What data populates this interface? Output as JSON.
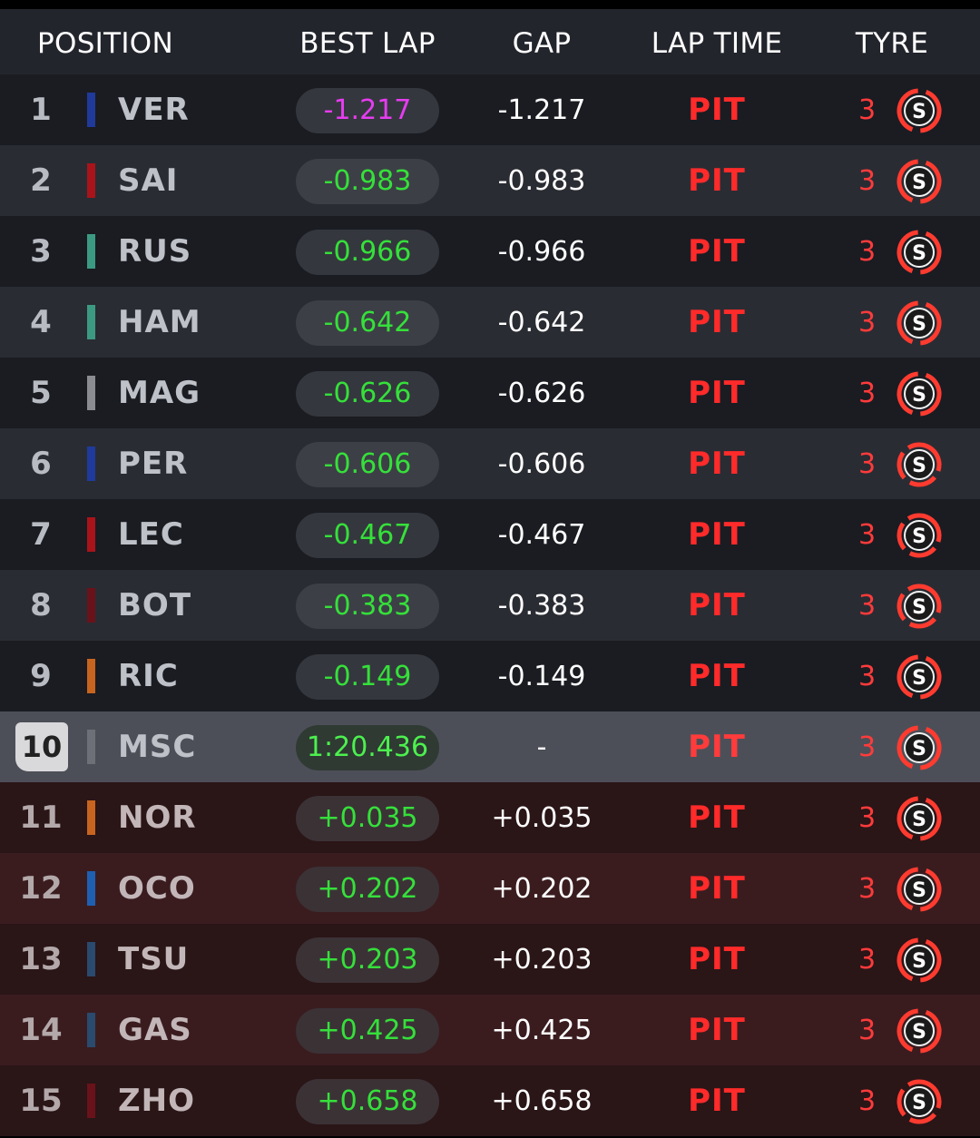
{
  "header": {
    "position": "POSITION",
    "best_lap": "BEST LAP",
    "gap": "GAP",
    "lap_time": "LAP TIME",
    "tyre": "TYRE"
  },
  "colors": {
    "red_bull": "#1f3a9a",
    "ferrari": "#a8141a",
    "mercedes": "#3c9a83",
    "haas": "#8a8c92",
    "mclaren": "#c7641f",
    "alpine": "#1f5fb0",
    "alphatauri": "#2a4a6e",
    "alfa_romeo": "#6a121a",
    "aston": "#555760",
    "soft_tyre": "#ff3b30",
    "fast_green": "#35e03a",
    "purple": "#e63cf0"
  },
  "rows": [
    {
      "pos": "1",
      "driver": "VER",
      "team_color": "#1f3a9a",
      "best_lap": "-1.217",
      "best_lap_purple": true,
      "gap": "-1.217",
      "lap_time": "PIT",
      "stops": "3",
      "tyre_label": "S",
      "tyre_icon": "soft-tyre-icon",
      "status": "ahead"
    },
    {
      "pos": "2",
      "driver": "SAI",
      "team_color": "#a8141a",
      "best_lap": "-0.983",
      "gap": "-0.983",
      "lap_time": "PIT",
      "stops": "3",
      "tyre_label": "S",
      "tyre_icon": "soft-tyre-icon",
      "status": "ahead"
    },
    {
      "pos": "3",
      "driver": "RUS",
      "team_color": "#3c9a83",
      "best_lap": "-0.966",
      "gap": "-0.966",
      "lap_time": "PIT",
      "stops": "3",
      "tyre_label": "S",
      "tyre_icon": "soft-tyre-icon",
      "status": "ahead"
    },
    {
      "pos": "4",
      "driver": "HAM",
      "team_color": "#3c9a83",
      "best_lap": "-0.642",
      "gap": "-0.642",
      "lap_time": "PIT",
      "stops": "3",
      "tyre_label": "S",
      "tyre_icon": "soft-tyre-icon",
      "status": "ahead"
    },
    {
      "pos": "5",
      "driver": "MAG",
      "team_color": "#8a8c92",
      "best_lap": "-0.626",
      "gap": "-0.626",
      "lap_time": "PIT",
      "stops": "3",
      "tyre_label": "S",
      "tyre_icon": "soft-tyre-icon",
      "status": "ahead"
    },
    {
      "pos": "6",
      "driver": "PER",
      "team_color": "#1f3a9a",
      "best_lap": "-0.606",
      "gap": "-0.606",
      "lap_time": "PIT",
      "stops": "3",
      "tyre_label": "S",
      "tyre_icon": "worn-soft-tyre-icon",
      "status": "ahead"
    },
    {
      "pos": "7",
      "driver": "LEC",
      "team_color": "#a8141a",
      "best_lap": "-0.467",
      "gap": "-0.467",
      "lap_time": "PIT",
      "stops": "3",
      "tyre_label": "S",
      "tyre_icon": "worn-soft-tyre-icon",
      "status": "ahead"
    },
    {
      "pos": "8",
      "driver": "BOT",
      "team_color": "#6a121a",
      "best_lap": "-0.383",
      "gap": "-0.383",
      "lap_time": "PIT",
      "stops": "3",
      "tyre_label": "S",
      "tyre_icon": "worn-soft-tyre-icon",
      "status": "ahead"
    },
    {
      "pos": "9",
      "driver": "RIC",
      "team_color": "#c7641f",
      "best_lap": "-0.149",
      "gap": "-0.149",
      "lap_time": "PIT",
      "stops": "3",
      "tyre_label": "S",
      "tyre_icon": "soft-tyre-icon",
      "status": "ahead"
    },
    {
      "pos": "10",
      "driver": "MSC",
      "team_color": "#6e7078",
      "best_lap": "1:20.436",
      "gap": "-",
      "lap_time": "PIT",
      "stops": "3",
      "tyre_label": "S",
      "tyre_icon": "soft-tyre-icon",
      "status": "self"
    },
    {
      "pos": "11",
      "driver": "NOR",
      "team_color": "#c7641f",
      "best_lap": "+0.035",
      "gap": "+0.035",
      "lap_time": "PIT",
      "stops": "3",
      "tyre_label": "S",
      "tyre_icon": "soft-tyre-icon",
      "status": "behind"
    },
    {
      "pos": "12",
      "driver": "OCO",
      "team_color": "#1f5fb0",
      "best_lap": "+0.202",
      "gap": "+0.202",
      "lap_time": "PIT",
      "stops": "3",
      "tyre_label": "S",
      "tyre_icon": "soft-tyre-icon",
      "status": "behind"
    },
    {
      "pos": "13",
      "driver": "TSU",
      "team_color": "#2a4a6e",
      "best_lap": "+0.203",
      "gap": "+0.203",
      "lap_time": "PIT",
      "stops": "3",
      "tyre_label": "S",
      "tyre_icon": "soft-tyre-icon",
      "status": "behind"
    },
    {
      "pos": "14",
      "driver": "GAS",
      "team_color": "#2a4a6e",
      "best_lap": "+0.425",
      "gap": "+0.425",
      "lap_time": "PIT",
      "stops": "3",
      "tyre_label": "S",
      "tyre_icon": "soft-tyre-icon",
      "status": "behind"
    },
    {
      "pos": "15",
      "driver": "ZHO",
      "team_color": "#6a121a",
      "best_lap": "+0.658",
      "gap": "+0.658",
      "lap_time": "PIT",
      "stops": "3",
      "tyre_label": "S",
      "tyre_icon": "worn-soft-tyre-icon",
      "status": "behind"
    }
  ]
}
